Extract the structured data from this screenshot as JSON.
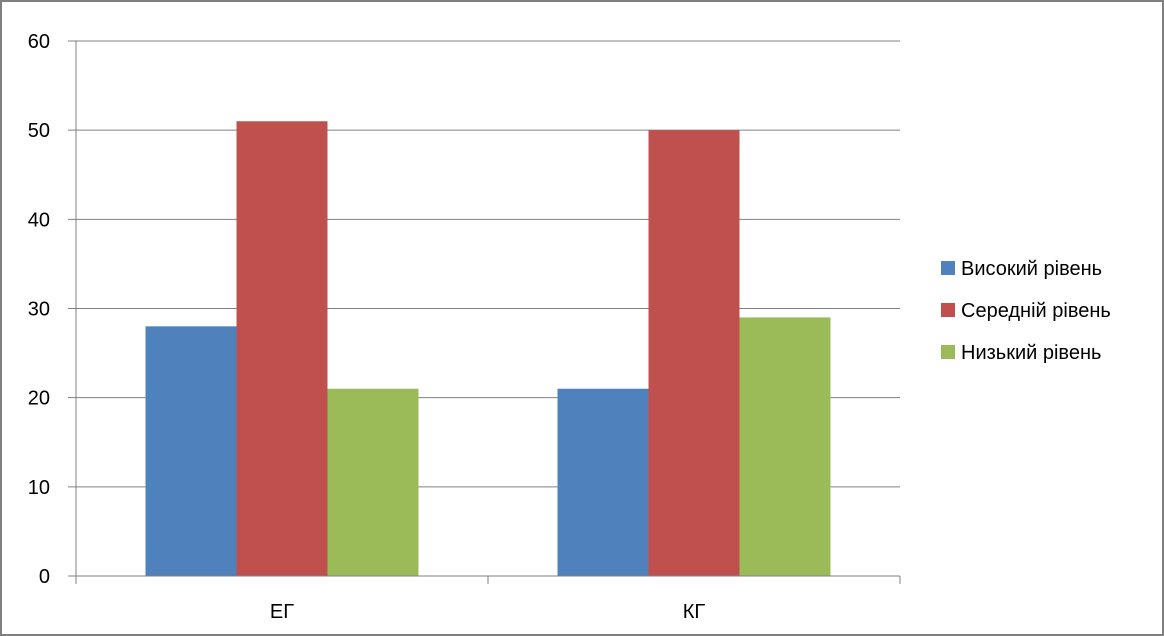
{
  "chart_data": {
    "type": "bar",
    "categories": [
      "ЕГ",
      "КГ"
    ],
    "series": [
      {
        "name": "Високий рівень",
        "values": [
          28,
          21
        ],
        "color": "#4F81BD"
      },
      {
        "name": "Середній рівень",
        "values": [
          51,
          50
        ],
        "color": "#C0504D"
      },
      {
        "name": "Низький рівень",
        "values": [
          21,
          29
        ],
        "color": "#9BBB59"
      }
    ],
    "y_ticks": [
      "0",
      "10",
      "20",
      "30",
      "40",
      "50",
      "60"
    ],
    "ylim": [
      0,
      60
    ],
    "grid": true,
    "legend_position": "right",
    "title": "",
    "xlabel": "",
    "ylabel": "",
    "colors": {
      "frame": "#808080",
      "grid": "#808080",
      "axis": "#808080"
    }
  }
}
